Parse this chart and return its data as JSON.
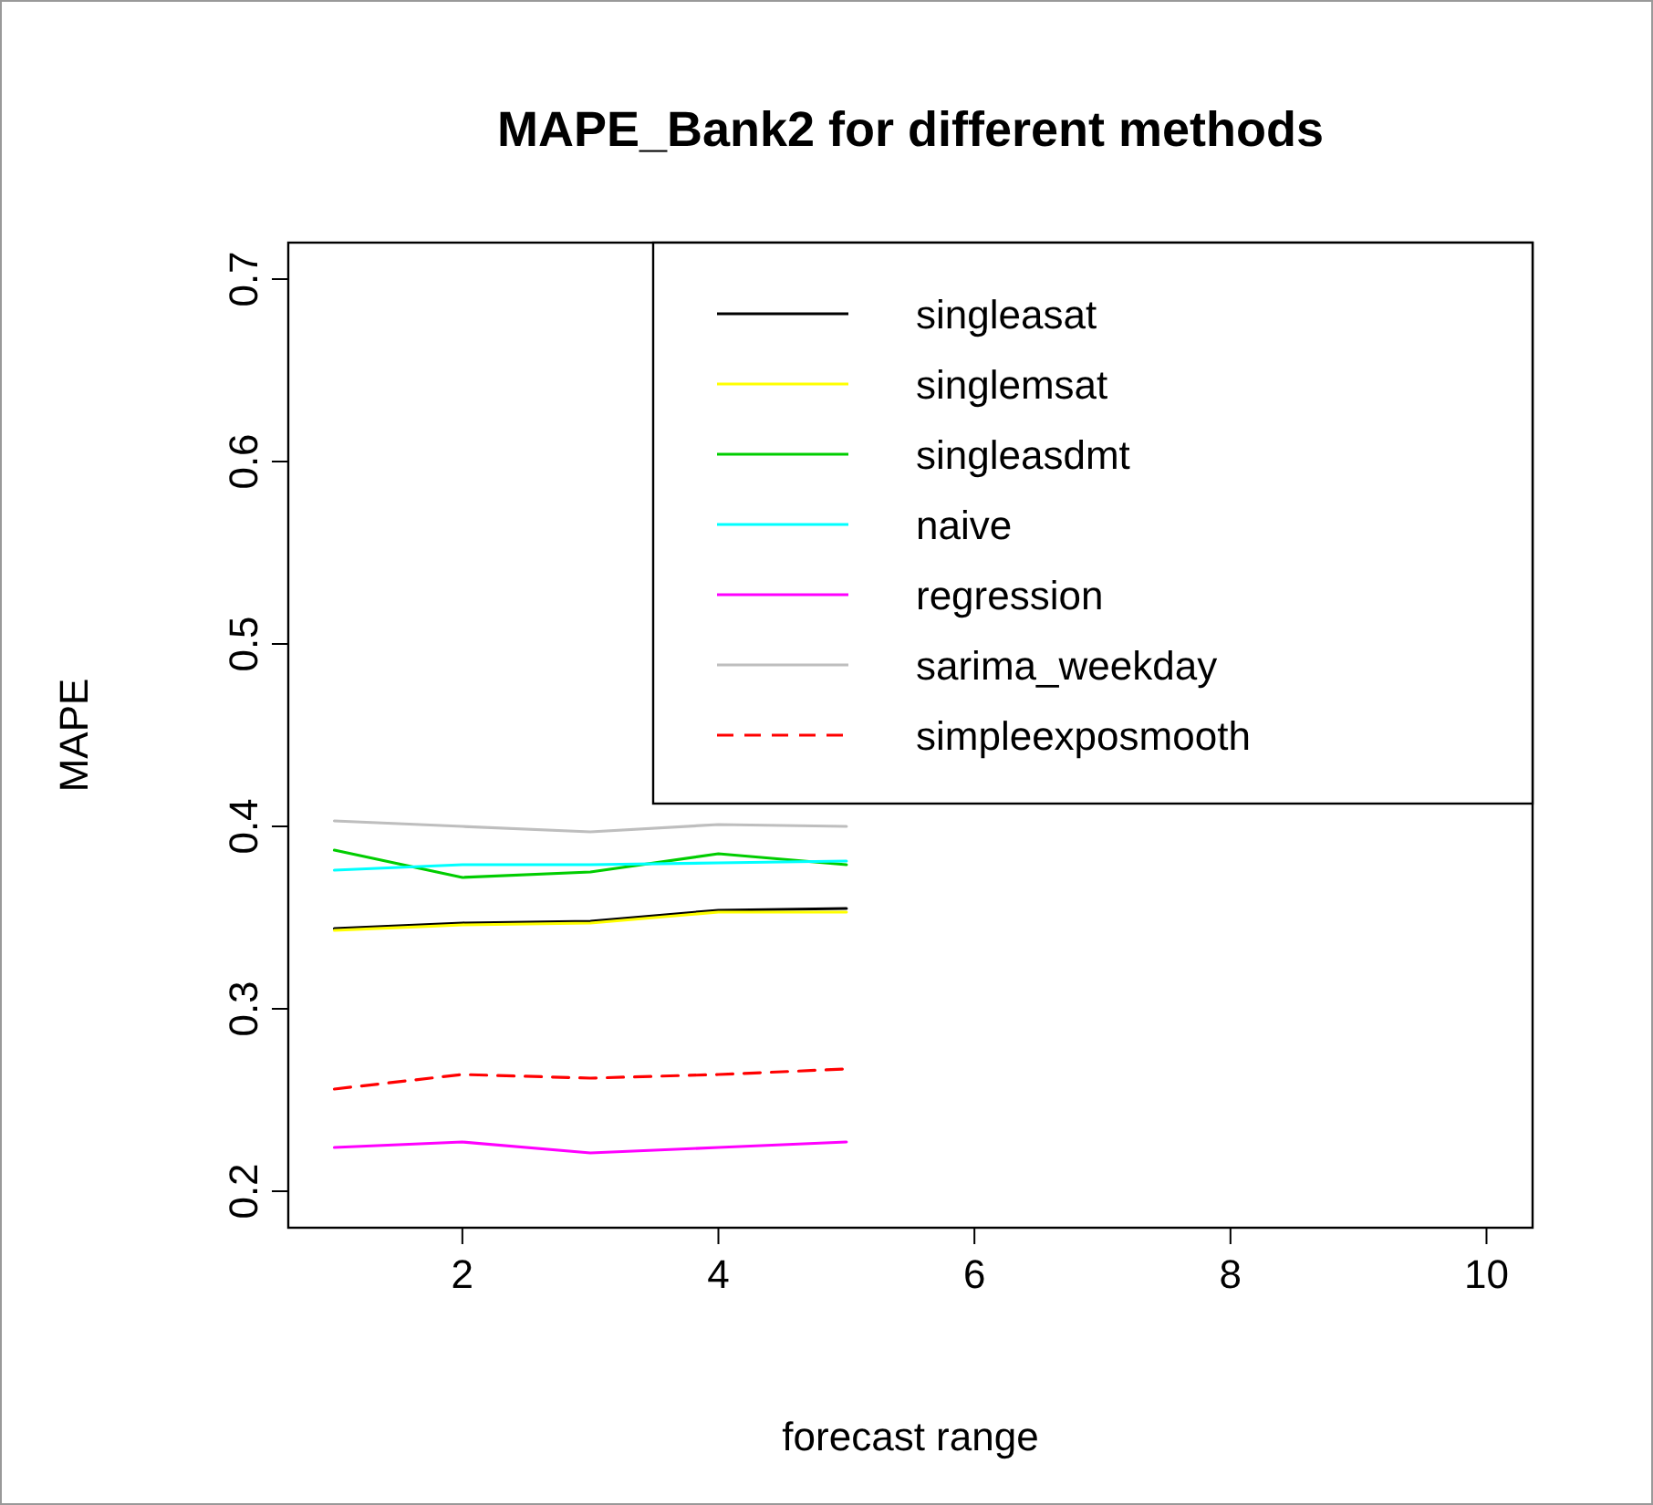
{
  "chart_data": {
    "type": "line",
    "title": "MAPE_Bank2 for different methods",
    "xlabel": "forecast range",
    "ylabel": "MAPE",
    "x": [
      1,
      2,
      3,
      4,
      5
    ],
    "xlim": [
      0.64,
      10.36
    ],
    "xticks": [
      2,
      4,
      6,
      8,
      10
    ],
    "ylim": [
      0.18,
      0.72
    ],
    "yticks": [
      0.2,
      0.3,
      0.4,
      0.5,
      0.6,
      0.7
    ],
    "legend": "top right",
    "grid": false,
    "marker": "none",
    "series": [
      {
        "name": "singleasat",
        "color": "#000000",
        "values": [
          0.344,
          0.347,
          0.348,
          0.354,
          0.355
        ]
      },
      {
        "name": "singlemsat",
        "color": "#ffff00",
        "values": [
          0.343,
          0.346,
          0.347,
          0.353,
          0.353
        ]
      },
      {
        "name": "singleasdmt",
        "color": "#00cd00",
        "values": [
          0.387,
          0.372,
          0.375,
          0.385,
          0.379
        ]
      },
      {
        "name": "naive",
        "color": "#00ffff",
        "values": [
          0.376,
          0.379,
          0.379,
          0.38,
          0.381
        ]
      },
      {
        "name": "regression",
        "color": "#ff00ff",
        "values": [
          0.224,
          0.227,
          0.221,
          0.224,
          0.227
        ]
      },
      {
        "name": "sarima_weekday",
        "color": "#bebebe",
        "values": [
          0.403,
          0.4,
          0.397,
          0.401,
          0.4
        ]
      },
      {
        "name": "simpleexposmooth",
        "color": "#ff0000",
        "line_style": "dashed",
        "values": [
          0.256,
          0.264,
          0.262,
          0.264,
          0.267
        ]
      }
    ]
  }
}
